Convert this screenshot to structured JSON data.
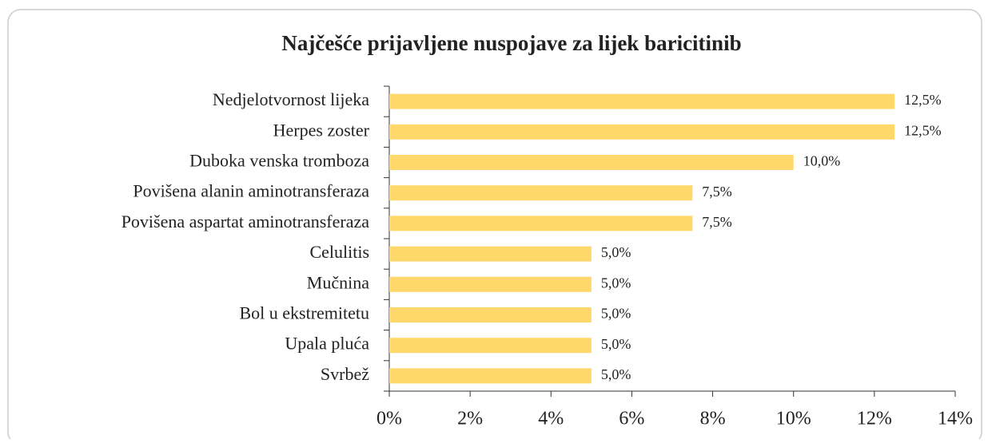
{
  "chart_data": {
    "type": "bar",
    "orientation": "horizontal",
    "title": "Najčešće prijavljene nuspojave za lijek baricitinib",
    "categories": [
      "Nedjelotvornost lijeka",
      "Herpes zoster",
      "Duboka venska tromboza",
      "Povišena alanin aminotransferaza",
      "Povišena aspartat aminotransferaza",
      "Celulitis",
      "Mučnina",
      "Bol u ekstremitetu",
      "Upala pluća",
      "Svrbež"
    ],
    "values": [
      12.5,
      12.5,
      10.0,
      7.5,
      7.5,
      5.0,
      5.0,
      5.0,
      5.0,
      5.0
    ],
    "value_labels": [
      "12,5%",
      "12,5%",
      "10,0%",
      "7,5%",
      "7,5%",
      "5,0%",
      "5,0%",
      "5,0%",
      "5,0%",
      "5,0%"
    ],
    "color": "#ffd86b",
    "xlim": [
      0,
      14
    ],
    "xticks": [
      {
        "value": 0,
        "label": "0%"
      },
      {
        "value": 2,
        "label": "2%"
      },
      {
        "value": 4,
        "label": "4%"
      },
      {
        "value": 6,
        "label": "6%"
      },
      {
        "value": 8,
        "label": "8%"
      },
      {
        "value": 10,
        "label": "10%"
      },
      {
        "value": 12,
        "label": "12%"
      },
      {
        "value": 14,
        "label": "14%"
      }
    ]
  }
}
